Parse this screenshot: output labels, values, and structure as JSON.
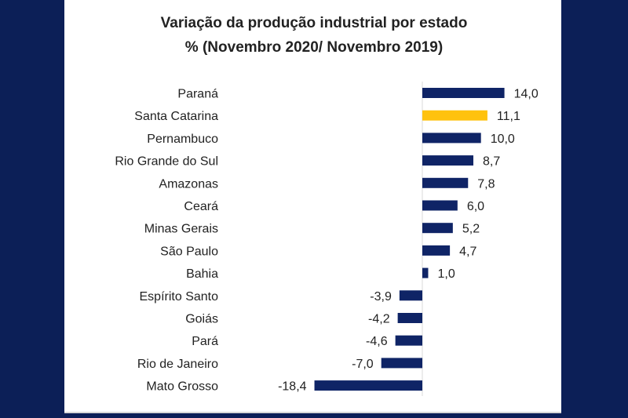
{
  "colors": {
    "background": "#0c1f57",
    "bar": "#0f2466",
    "highlight": "#ffc20e"
  },
  "chart_data": {
    "type": "bar",
    "orientation": "horizontal",
    "title": "Variação da produção industrial por estado",
    "subtitle": "% (Novembro 2020/ Novembro 2019)",
    "categories": [
      "Paraná",
      "Santa Catarina",
      "Pernambuco",
      "Rio Grande do Sul",
      "Amazonas",
      "Ceará",
      "Minas Gerais",
      "São Paulo",
      "Bahia",
      "Espírito Santo",
      "Goiás",
      "Pará",
      "Rio de Janeiro",
      "Mato Grosso"
    ],
    "values": [
      14.0,
      11.1,
      10.0,
      8.7,
      7.8,
      6.0,
      5.2,
      4.7,
      1.0,
      -3.9,
      -4.2,
      -4.6,
      -7.0,
      -18.4
    ],
    "data_labels": [
      "14,0",
      "11,1",
      "10,0",
      "8,7",
      "7,8",
      "6,0",
      "5,2",
      "4,7",
      "1,0",
      "-3,9",
      "-4,2",
      "-4,6",
      "-7,0",
      "-18,4"
    ],
    "highlighted_category": "Santa Catarina",
    "grid": false,
    "legend": "none"
  }
}
